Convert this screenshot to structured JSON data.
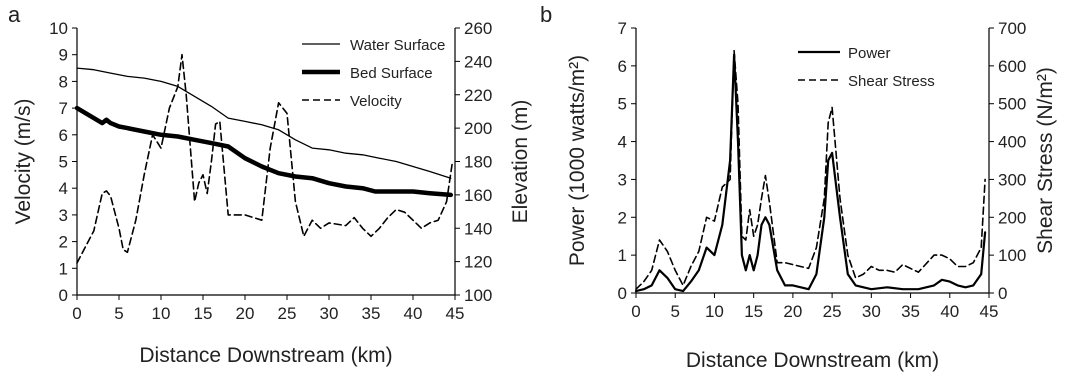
{
  "chart_data": [
    {
      "panel_label": "a",
      "type": "line",
      "xlabel": "Distance Downstream (km)",
      "ylabel_left": "Velocity (m/s)",
      "ylabel_right": "Elevation (m)",
      "xlim": [
        0,
        45
      ],
      "ylim_left": [
        0,
        10
      ],
      "ylim_right": [
        100,
        260
      ],
      "xticks": [
        "0",
        "5",
        "10",
        "15",
        "20",
        "25",
        "30",
        "35",
        "40",
        "45"
      ],
      "yticks_left": [
        "0",
        "1",
        "2",
        "3",
        "4",
        "5",
        "6",
        "7",
        "8",
        "9",
        "10"
      ],
      "yticks_right": [
        "100",
        "120",
        "140",
        "160",
        "180",
        "200",
        "220",
        "240",
        "260"
      ],
      "legend": "top-right",
      "series": [
        {
          "name": "Water Surface",
          "axis": "right",
          "style": "thin-solid",
          "x": [
            0,
            2,
            4,
            6,
            8,
            10,
            12,
            14,
            16,
            18,
            20,
            22,
            24,
            26,
            28,
            30,
            32,
            34,
            36,
            38,
            40,
            42,
            44.5
          ],
          "y": [
            236,
            235,
            233,
            231,
            230,
            228,
            225,
            219,
            213,
            206,
            204,
            202,
            199,
            193,
            188,
            187,
            185,
            184,
            182,
            180,
            177,
            174,
            170
          ]
        },
        {
          "name": "Bed Surface",
          "axis": "right",
          "style": "thick-solid",
          "x": [
            0,
            1,
            2,
            3,
            3.5,
            4,
            5,
            6,
            8,
            10,
            12,
            14,
            16,
            18,
            20,
            22,
            24,
            26,
            28,
            30,
            32,
            34,
            35.5,
            38,
            40,
            42,
            44.5
          ],
          "y": [
            212,
            209,
            206,
            203,
            205,
            203,
            201,
            200,
            198,
            196,
            195,
            193,
            191,
            189,
            182,
            177,
            173,
            171,
            170,
            167,
            165,
            164,
            162,
            162,
            162,
            161,
            160
          ]
        },
        {
          "name": "Velocity",
          "axis": "left",
          "style": "dashed",
          "x": [
            0,
            1,
            2,
            3,
            3.5,
            4,
            5,
            5.5,
            6,
            7,
            8,
            9,
            10,
            11,
            12,
            12.5,
            13,
            14,
            14.5,
            15,
            15.5,
            16,
            16.5,
            17,
            18,
            20,
            22,
            23,
            24,
            25,
            26,
            27,
            28,
            29,
            30,
            32,
            33,
            34,
            35,
            36,
            37,
            38,
            39,
            40,
            41,
            42,
            43,
            44,
            44.7
          ],
          "y": [
            1.2,
            1.8,
            2.4,
            3.8,
            3.9,
            3.7,
            2.5,
            1.7,
            1.6,
            2.8,
            4.5,
            6.0,
            5.5,
            7.0,
            7.8,
            9.0,
            7.5,
            3.5,
            4.2,
            4.5,
            3.8,
            5.0,
            6.4,
            6.5,
            3.0,
            3.0,
            2.8,
            5.5,
            7.2,
            6.8,
            3.5,
            2.2,
            2.8,
            2.5,
            2.7,
            2.6,
            2.9,
            2.5,
            2.2,
            2.5,
            2.9,
            3.2,
            3.1,
            2.8,
            2.5,
            2.7,
            2.8,
            3.5,
            5.0
          ]
        }
      ]
    },
    {
      "panel_label": "b",
      "type": "line",
      "xlabel": "Distance Downstream (km)",
      "ylabel_left": "Power (1000 watts/m²)",
      "ylabel_right": "Shear Stress (N/m²)",
      "xlim": [
        0,
        45
      ],
      "ylim_left": [
        0,
        7
      ],
      "ylim_right": [
        0,
        700
      ],
      "xticks": [
        "0",
        "5",
        "10",
        "15",
        "20",
        "25",
        "30",
        "35",
        "40",
        "45"
      ],
      "yticks_left": [
        "0",
        "1",
        "2",
        "3",
        "4",
        "5",
        "6",
        "7"
      ],
      "yticks_right": [
        "0",
        "100",
        "200",
        "300",
        "400",
        "500",
        "600",
        "700"
      ],
      "legend": "top-right",
      "series": [
        {
          "name": "Power",
          "axis": "left",
          "style": "solid",
          "x": [
            0,
            1,
            2,
            3,
            4,
            5,
            6,
            7,
            8,
            9,
            10,
            11,
            12,
            12.5,
            13,
            13.5,
            14,
            14.5,
            15,
            15.5,
            16,
            16.5,
            17,
            18,
            19,
            20,
            22,
            23,
            24,
            24.5,
            25,
            26,
            27,
            28,
            30,
            32,
            34,
            36,
            38,
            39,
            40,
            41,
            42,
            43,
            44,
            44.5
          ],
          "y": [
            0.05,
            0.1,
            0.2,
            0.6,
            0.4,
            0.1,
            0.05,
            0.3,
            0.6,
            1.2,
            1.0,
            1.8,
            3.5,
            6.3,
            4.0,
            1.0,
            0.6,
            1.0,
            0.6,
            1.0,
            1.8,
            2.0,
            1.8,
            0.6,
            0.2,
            0.2,
            0.1,
            0.5,
            2.0,
            3.5,
            3.7,
            2.0,
            0.5,
            0.2,
            0.1,
            0.15,
            0.1,
            0.1,
            0.2,
            0.35,
            0.3,
            0.2,
            0.15,
            0.2,
            0.5,
            1.6
          ]
        },
        {
          "name": "Shear Stress",
          "axis": "right",
          "style": "dashed",
          "x": [
            0,
            1,
            2,
            3,
            4,
            5,
            6,
            7,
            8,
            9,
            10,
            11,
            12,
            12.5,
            13,
            13.5,
            14,
            14.5,
            15,
            15.5,
            16,
            16.5,
            17,
            18,
            19,
            20,
            22,
            23,
            24,
            24.5,
            25,
            26,
            27,
            28,
            29,
            30,
            31,
            32,
            33,
            34,
            36,
            38,
            39,
            40,
            41,
            42,
            43,
            44,
            44.5
          ],
          "y": [
            10,
            30,
            60,
            140,
            110,
            60,
            20,
            70,
            110,
            200,
            190,
            280,
            300,
            640,
            500,
            150,
            140,
            220,
            150,
            180,
            250,
            310,
            240,
            80,
            80,
            75,
            65,
            120,
            250,
            450,
            490,
            250,
            100,
            40,
            50,
            70,
            60,
            60,
            55,
            75,
            55,
            100,
            100,
            90,
            70,
            70,
            80,
            120,
            300
          ]
        }
      ]
    }
  ]
}
